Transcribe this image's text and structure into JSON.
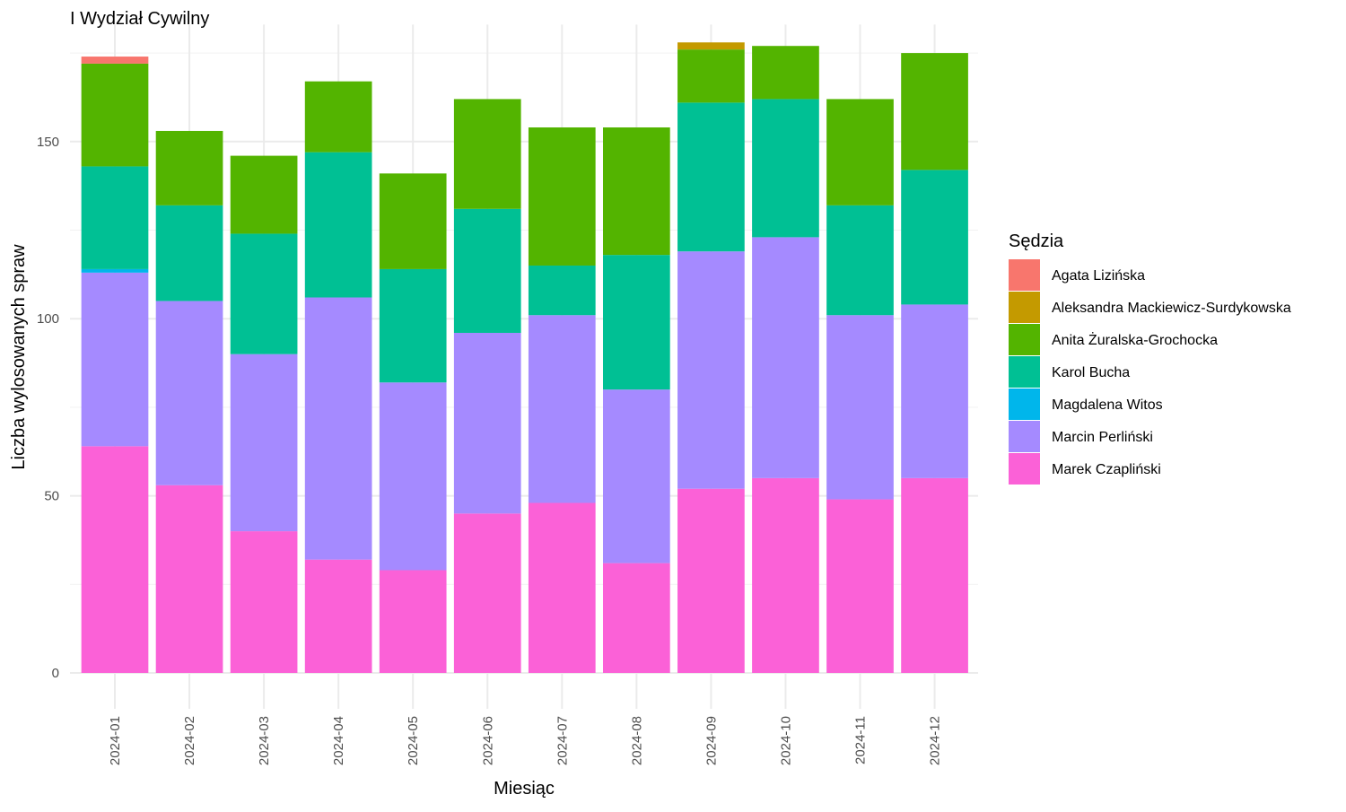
{
  "chart_data": {
    "type": "bar",
    "stacked": true,
    "title": "I Wydział Cywilny",
    "xlabel": "Miesiąc",
    "ylabel": "Liczba wylosowanych spraw",
    "ylim": [
      0,
      180
    ],
    "yticks": [
      0,
      50,
      100,
      150
    ],
    "grid": true,
    "legend_position": "right",
    "legend_title": "Sędzia",
    "categories": [
      "2024-01",
      "2024-02",
      "2024-03",
      "2024-04",
      "2024-05",
      "2024-06",
      "2024-07",
      "2024-08",
      "2024-09",
      "2024-10",
      "2024-11",
      "2024-12"
    ],
    "stack_order": [
      "Marek Czapliński",
      "Marcin Perliński",
      "Magdalena Witos",
      "Karol Bucha",
      "Anita Żuralska-Grochocka",
      "Aleksandra Mackiewicz-Surdykowska",
      "Agata Lizińska"
    ],
    "series": [
      {
        "name": "Agata Lizińska",
        "color": "#F8766D",
        "values": [
          2,
          0,
          0,
          0,
          0,
          0,
          0,
          0,
          0,
          0,
          0,
          0
        ]
      },
      {
        "name": "Aleksandra Mackiewicz-Surdykowska",
        "color": "#C49A00",
        "values": [
          0,
          0,
          0,
          0,
          0,
          0,
          0,
          0,
          2,
          0,
          0,
          0
        ]
      },
      {
        "name": "Anita Żuralska-Grochocka",
        "color": "#53B400",
        "values": [
          29,
          21,
          22,
          20,
          27,
          31,
          39,
          36,
          15,
          15,
          30,
          33
        ]
      },
      {
        "name": "Karol Bucha",
        "color": "#00C094",
        "values": [
          29,
          27,
          34,
          41,
          32,
          35,
          14,
          38,
          42,
          39,
          31,
          38
        ]
      },
      {
        "name": "Magdalena Witos",
        "color": "#00B6EB",
        "values": [
          1,
          0,
          0,
          0,
          0,
          0,
          0,
          0,
          0,
          0,
          0,
          0
        ]
      },
      {
        "name": "Marcin Perliński",
        "color": "#A58AFF",
        "values": [
          49,
          52,
          50,
          74,
          53,
          51,
          53,
          49,
          67,
          68,
          52,
          49
        ]
      },
      {
        "name": "Marek Czapliński",
        "color": "#FB61D7",
        "values": [
          64,
          53,
          40,
          32,
          29,
          45,
          48,
          31,
          52,
          55,
          49,
          55
        ]
      }
    ]
  }
}
